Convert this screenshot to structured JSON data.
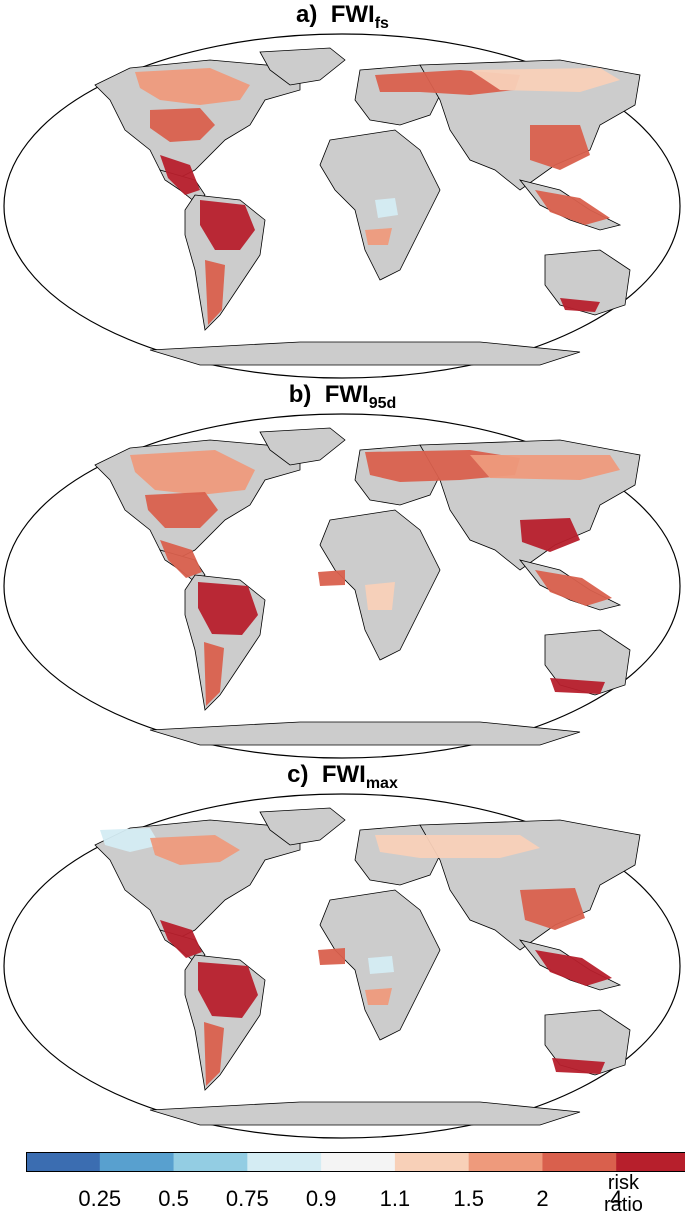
{
  "panels": [
    {
      "label": "a)",
      "name": "FWI",
      "subscript": "fs"
    },
    {
      "label": "b)",
      "name": "FWI",
      "subscript": "95d"
    },
    {
      "label": "c)",
      "name": "FWI",
      "subscript": "max"
    }
  ],
  "colorbar": {
    "colors": [
      "#3b6db1",
      "#58a0cf",
      "#93cde3",
      "#d4ecf3",
      "#f4f4f4",
      "#f8d0b8",
      "#ee9a7c",
      "#d9604d",
      "#b71f2c"
    ],
    "ticks": [
      "0.25",
      "0.5",
      "0.75",
      "0.9",
      "1.1",
      "1.5",
      "2",
      "4"
    ],
    "unit_line1": "risk",
    "unit_line2": "ratio"
  },
  "map_colors": {
    "land_no_data": "#cccccc",
    "ocean": "#ffffff",
    "outline": "#000000"
  }
}
